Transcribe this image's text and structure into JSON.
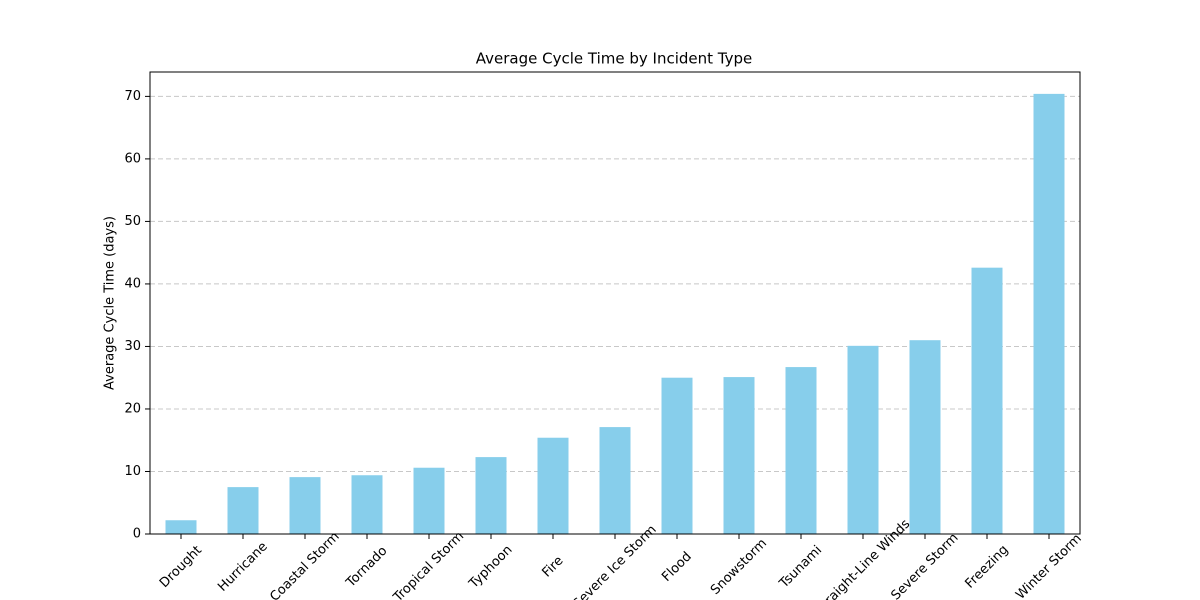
{
  "chart_data": {
    "type": "bar",
    "title": "Average Cycle Time by Incident Type",
    "y_label": "Average Cycle Time (days)",
    "categories": [
      "Drought",
      "Hurricane",
      "Coastal Storm",
      "Tornado",
      "Tropical Storm",
      "Typhoon",
      "Fire",
      "Severe Ice Storm",
      "Flood",
      "Snowstorm",
      "Tsunami",
      "Straight-Line Winds",
      "Severe Storm",
      "Freezing",
      "Winter Storm"
    ],
    "values": [
      2.2,
      7.5,
      9.1,
      9.4,
      10.6,
      12.3,
      15.4,
      17.1,
      25.0,
      25.1,
      26.7,
      30.1,
      31.0,
      42.6,
      70.4
    ],
    "color": "#87ceeb",
    "ylim": [
      0,
      73.9
    ],
    "yticks": [
      0,
      10,
      20,
      30,
      40,
      50,
      60,
      70
    ],
    "grid": true
  }
}
